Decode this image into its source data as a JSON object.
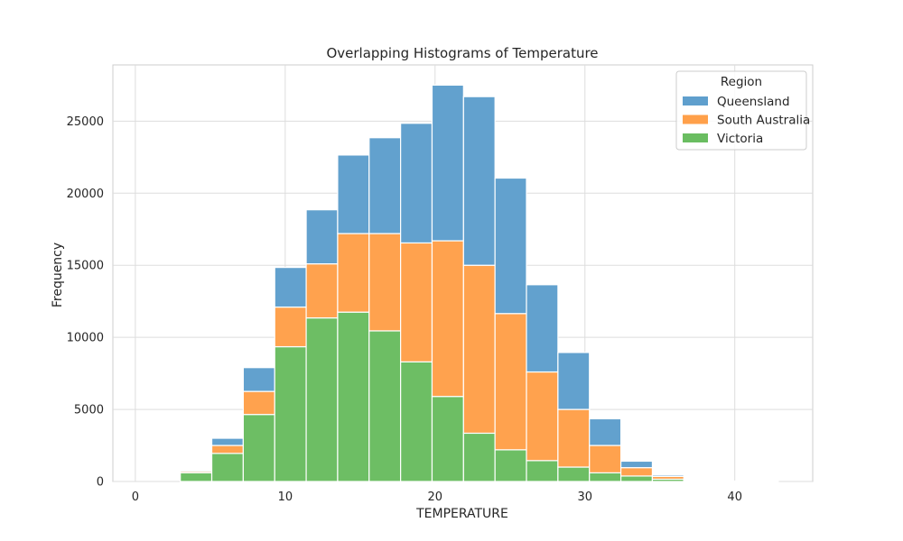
{
  "chart_data": {
    "type": "bar",
    "title": "Overlapping Histograms of Temperature",
    "xlabel": "TEMPERATURE",
    "ylabel": "Frequency",
    "xlim": [
      -1.5,
      45.2
    ],
    "ylim": [
      0,
      28900
    ],
    "xticks": [
      0,
      10,
      20,
      30,
      40
    ],
    "yticks": [
      0,
      5000,
      10000,
      15000,
      20000,
      25000
    ],
    "grid": true,
    "stacked": true,
    "legend": {
      "title": "Region",
      "position": "top-right"
    },
    "bin_edges": [
      3.0,
      5.1,
      7.2,
      9.3,
      11.4,
      13.5,
      15.6,
      17.7,
      19.8,
      21.9,
      24.0,
      26.1,
      28.2,
      30.3,
      32.4,
      34.5,
      36.6,
      38.7,
      40.8,
      42.9
    ],
    "series": [
      {
        "name": "Victoria",
        "color": "#6ABD61",
        "values": [
          600,
          1950,
          4650,
          9350,
          11350,
          11750,
          10450,
          8300,
          5900,
          3350,
          2200,
          1450,
          1000,
          600,
          380,
          160,
          50,
          15,
          5
        ]
      },
      {
        "name": "South Australia",
        "color": "#FFA04A",
        "values": [
          100,
          550,
          1600,
          2750,
          3750,
          5450,
          6750,
          8250,
          10800,
          11650,
          9450,
          6150,
          4000,
          1900,
          580,
          190,
          40,
          10,
          3
        ]
      },
      {
        "name": "Queensland",
        "color": "#5F9FCD",
        "values": [
          80,
          500,
          1650,
          2750,
          3750,
          5450,
          6650,
          8300,
          10800,
          11700,
          9400,
          6050,
          3950,
          1850,
          450,
          100,
          20,
          5,
          2
        ]
      }
    ]
  }
}
